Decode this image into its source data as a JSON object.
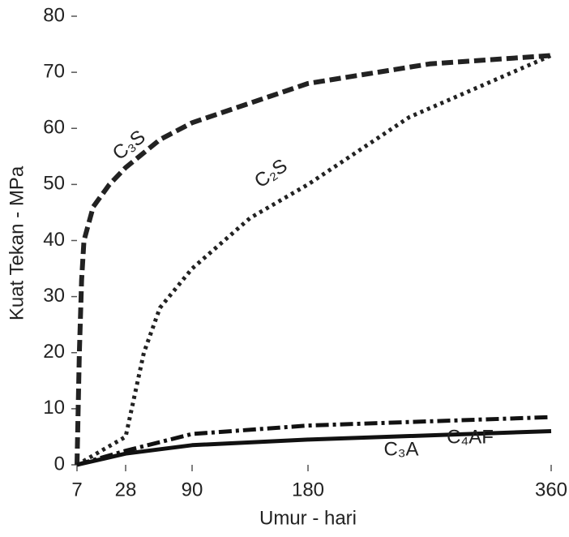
{
  "chart_data": {
    "type": "line",
    "ylabel": "Kuat Tekan - MPa",
    "xlabel": "Umur - hari",
    "ylim": [
      0,
      80
    ],
    "yticks": [
      0,
      10,
      20,
      30,
      40,
      50,
      60,
      70,
      80
    ],
    "xlim": [
      7,
      360
    ],
    "xticks": [
      7,
      28,
      90,
      180,
      360
    ],
    "series": [
      {
        "name": "C₃S",
        "color": "#222222",
        "style": "dashed",
        "x": [
          7,
          8,
          9,
          10,
          14,
          21,
          28,
          60,
          90,
          180,
          270,
          360
        ],
        "values": [
          0,
          20,
          33,
          40,
          46,
          50,
          53,
          58,
          61,
          68,
          71.5,
          73
        ]
      },
      {
        "name": "C₂S",
        "color": "#222222",
        "style": "dotted",
        "x": [
          7,
          28,
          45,
          60,
          90,
          135,
          180,
          255,
          360
        ],
        "values": [
          0,
          5,
          20,
          28,
          35,
          44,
          50,
          62,
          73
        ]
      },
      {
        "name": "C₃A",
        "color": "#111111",
        "style": "dashdot",
        "x": [
          7,
          28,
          90,
          180,
          360
        ],
        "values": [
          0,
          2.5,
          5.5,
          7,
          8.5
        ]
      },
      {
        "name": "C₄AF",
        "color": "#111111",
        "style": "solid",
        "x": [
          7,
          28,
          90,
          180,
          360
        ],
        "values": [
          0,
          2,
          3.5,
          4.5,
          6
        ]
      }
    ]
  }
}
